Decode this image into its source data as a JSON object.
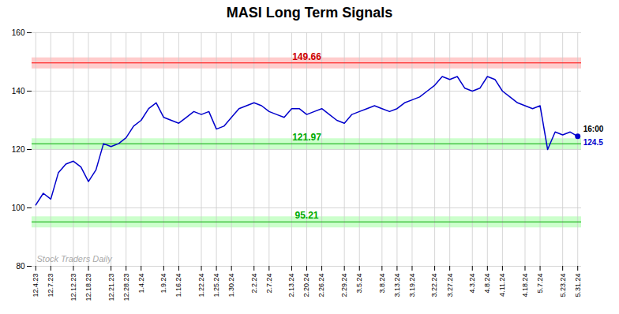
{
  "chart_data": {
    "type": "line",
    "title": "MASI Long Term Signals",
    "color": "#0000cc",
    "categories": [
      "12.4.23",
      null,
      "12.7.23",
      null,
      null,
      "12.12.23",
      null,
      "12.18.23",
      null,
      null,
      "12.21.23",
      null,
      "12.28.23",
      null,
      "1.4.24",
      null,
      null,
      "1.9.24",
      null,
      "1.16.24",
      null,
      null,
      "1.22.24",
      null,
      "1.25.24",
      null,
      "1.30.24",
      null,
      null,
      "2.2.24",
      null,
      "2.7.24",
      null,
      null,
      "2.13.24",
      null,
      "2.20.24",
      null,
      "2.26.24",
      null,
      null,
      "2.29.24",
      null,
      "3.5.24",
      null,
      null,
      "3.8.24",
      null,
      "3.13.24",
      null,
      "3.19.24",
      null,
      null,
      "3.22.24",
      null,
      "3.27.24",
      null,
      null,
      "4.3.24",
      null,
      "4.8.24",
      null,
      "4.11.24",
      null,
      null,
      "4.18.24",
      null,
      "5.7.24",
      null,
      null,
      "5.23.24",
      null,
      "5.31.24"
    ],
    "values": [
      101,
      105,
      103,
      112,
      115,
      116,
      114,
      109,
      113,
      122,
      121,
      122,
      124,
      128,
      130,
      134,
      136,
      131,
      130,
      129,
      131,
      133,
      132,
      133,
      127,
      128,
      131,
      134,
      135,
      136,
      135,
      133,
      132,
      131,
      134,
      134,
      132,
      133,
      134,
      132,
      130,
      129,
      132,
      133,
      134,
      135,
      134,
      133,
      134,
      136,
      137,
      138,
      140,
      142,
      145,
      144,
      145,
      141,
      140,
      141,
      145,
      144,
      140,
      138,
      136,
      135,
      134,
      135,
      120,
      126,
      125,
      126,
      124.5
    ],
    "ylim": [
      80,
      160
    ],
    "yticks": [
      80,
      100,
      120,
      140,
      160
    ],
    "grid": true,
    "reference_lines": [
      {
        "value": 149.66,
        "label": "149.66",
        "color": "#ff0000",
        "label_color": "#cc0000",
        "band_color": "#ffcccc"
      },
      {
        "value": 121.97,
        "label": "121.97",
        "color": "#00aa00",
        "label_color": "#00aa00",
        "band_color": "#ccffcc"
      },
      {
        "value": 95.21,
        "label": "95.21",
        "color": "#00aa00",
        "label_color": "#00aa00",
        "band_color": "#ccffcc"
      }
    ],
    "end_label_time": "16:00",
    "end_value_label": "124.5",
    "watermark": "Stock Traders Daily",
    "watermark_color": "#aaaaaa"
  }
}
